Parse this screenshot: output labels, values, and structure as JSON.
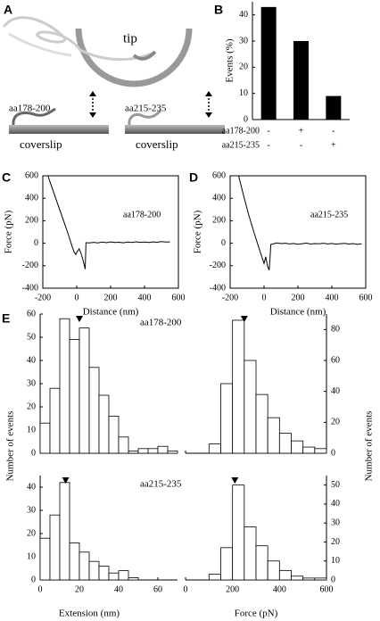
{
  "chart_data": [
    {
      "type": "diagram",
      "panel": "A",
      "labels": {
        "tip": "tip",
        "left": "aa178-200",
        "right": "aa215-235",
        "left_surface": "coverslip",
        "right_surface": "coverslip"
      }
    },
    {
      "type": "bar",
      "panel": "B",
      "ylabel": "Events (%)",
      "values": [
        43,
        30,
        9
      ],
      "color": "#000000",
      "ylim": [
        0,
        45
      ],
      "yticks": [
        0,
        10,
        20,
        30,
        40
      ],
      "category_rows": [
        {
          "label": "aa178-200",
          "marks": [
            "-",
            "+",
            "-"
          ]
        },
        {
          "label": "aa215-235",
          "marks": [
            "-",
            "-",
            "+"
          ]
        }
      ]
    },
    {
      "type": "line",
      "panel": "C",
      "annotation": "aa178-200",
      "xlabel": "Distance (nm)",
      "ylabel": "Force (pN)",
      "x": [
        -170,
        -140,
        -110,
        -80,
        -50,
        -25,
        -15,
        -5,
        5,
        15,
        25,
        35,
        45,
        50,
        55,
        75,
        100,
        125,
        150,
        175,
        200,
        225,
        250,
        275,
        300,
        325,
        350,
        375,
        400,
        425,
        450,
        475,
        500,
        525,
        550
      ],
      "y": [
        600,
        470,
        340,
        210,
        80,
        -40,
        -80,
        -100,
        -70,
        -50,
        -90,
        -140,
        -200,
        -230,
        5,
        3,
        8,
        2,
        10,
        5,
        12,
        6,
        9,
        4,
        11,
        7,
        13,
        8,
        10,
        6,
        12,
        9,
        14,
        10,
        12
      ],
      "xlim": [
        -200,
        600
      ],
      "xticks": [
        -200,
        0,
        200,
        400,
        600
      ],
      "ylim": [
        -400,
        600
      ],
      "yticks": [
        -400,
        -200,
        0,
        200,
        400,
        600
      ]
    },
    {
      "type": "line",
      "panel": "D",
      "annotation": "aa215-235",
      "xlabel": "Distance (nm)",
      "ylabel": "Force (pN)",
      "x": [
        -150,
        -120,
        -90,
        -60,
        -35,
        -15,
        0,
        10,
        20,
        30,
        35,
        40,
        50,
        75,
        100,
        125,
        150,
        175,
        200,
        225,
        250,
        275,
        300,
        325,
        350,
        375,
        400,
        425,
        450,
        475,
        500,
        525,
        550,
        575
      ],
      "y": [
        600,
        420,
        250,
        100,
        -20,
        -110,
        -180,
        -120,
        -200,
        -240,
        -150,
        -10,
        -8,
        2,
        -3,
        0,
        -6,
        -2,
        -9,
        -4,
        1,
        -7,
        -3,
        -5,
        0,
        -6,
        -2,
        -8,
        -4,
        -1,
        -7,
        -3,
        -10,
        -5
      ],
      "xlim": [
        -200,
        600
      ],
      "xticks": [
        -200,
        0,
        200,
        400,
        600
      ],
      "ylim": [
        -400,
        600
      ],
      "yticks": [
        -400,
        -200,
        0,
        200,
        400,
        600
      ]
    },
    {
      "type": "histogram",
      "panel": "E",
      "annotation": "aa178-200",
      "ylabel": "Number of events",
      "yaxis_side": "left",
      "xtick_labels": false,
      "bins": [
        0,
        5,
        10,
        15,
        20,
        25,
        30,
        35,
        40,
        45,
        50,
        55,
        60,
        65,
        70
      ],
      "values": [
        13,
        28,
        58,
        49,
        54,
        37,
        25,
        16,
        7,
        1,
        2,
        2,
        3,
        1
      ],
      "marker_x": 20,
      "xlim": [
        0,
        70
      ],
      "xticks": [
        0,
        20,
        40,
        60
      ],
      "ylim": [
        0,
        60
      ],
      "yticks": [
        0,
        10,
        20,
        30,
        40,
        50,
        60
      ]
    },
    {
      "type": "histogram",
      "ylabel": "Number of events",
      "yaxis_side": "right",
      "xtick_labels": false,
      "bins": [
        100,
        150,
        200,
        250,
        300,
        350,
        400,
        450,
        500,
        550,
        600
      ],
      "values": [
        6,
        45,
        86,
        60,
        38,
        23,
        13,
        8,
        4,
        3
      ],
      "marker_x": 250,
      "xlim": [
        0,
        600
      ],
      "xticks": [
        0,
        200,
        400,
        600
      ],
      "ylim": [
        0,
        90
      ],
      "yticks": [
        0,
        20,
        40,
        60,
        80
      ]
    },
    {
      "type": "histogram",
      "annotation": "aa215-235",
      "xlabel": "Extension (nm)",
      "yaxis_side": "left",
      "xtick_labels": true,
      "bins": [
        0,
        5,
        10,
        15,
        20,
        25,
        30,
        35,
        40,
        45,
        50
      ],
      "values": [
        18,
        28,
        42,
        16,
        12,
        8,
        6,
        3,
        4,
        1
      ],
      "marker_x": 13,
      "xlim": [
        0,
        70
      ],
      "xticks": [
        0,
        20,
        40,
        60
      ],
      "ylim": [
        0,
        45
      ],
      "yticks": [
        0,
        10,
        20,
        30,
        40
      ]
    },
    {
      "type": "histogram",
      "xlabel": "Force (pN)",
      "yaxis_side": "right",
      "xtick_labels": true,
      "bins": [
        100,
        150,
        200,
        250,
        300,
        350,
        400,
        450,
        500,
        550,
        600
      ],
      "values": [
        3,
        17,
        50,
        28,
        18,
        10,
        5,
        2,
        1,
        1
      ],
      "marker_x": 210,
      "xlim": [
        0,
        600
      ],
      "xticks": [
        0,
        200,
        400,
        600
      ],
      "ylim": [
        0,
        55
      ],
      "yticks": [
        0,
        10,
        20,
        30,
        40,
        50
      ]
    }
  ]
}
